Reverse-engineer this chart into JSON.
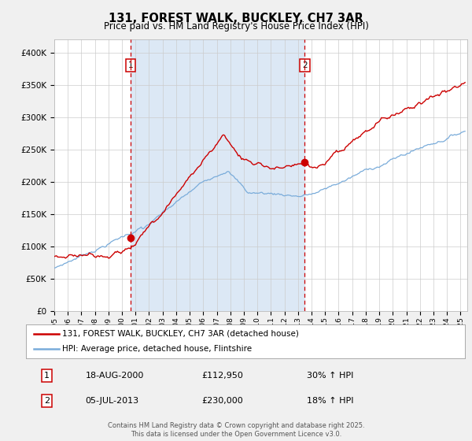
{
  "title": "131, FOREST WALK, BUCKLEY, CH7 3AR",
  "subtitle": "Price paid vs. HM Land Registry's House Price Index (HPI)",
  "title_fontsize": 10.5,
  "subtitle_fontsize": 8.5,
  "background_color": "#f0f0f0",
  "plot_bg_color": "#ffffff",
  "highlight_bg_color": "#dce8f5",
  "red_color": "#cc0000",
  "blue_color": "#7aacda",
  "marker1_date": 2000.63,
  "marker1_value": 112950,
  "marker2_date": 2013.5,
  "marker2_value": 230000,
  "vline1_date": 2000.63,
  "vline2_date": 2013.5,
  "ylim": [
    0,
    420000
  ],
  "xlim_start": 1995.0,
  "xlim_end": 2025.5,
  "legend_red": "131, FOREST WALK, BUCKLEY, CH7 3AR (detached house)",
  "legend_blue": "HPI: Average price, detached house, Flintshire",
  "table_row1": [
    "1",
    "18-AUG-2000",
    "£112,950",
    "30% ↑ HPI"
  ],
  "table_row2": [
    "2",
    "05-JUL-2013",
    "£230,000",
    "18% ↑ HPI"
  ],
  "footer": "Contains HM Land Registry data © Crown copyright and database right 2025.\nThis data is licensed under the Open Government Licence v3.0.",
  "yticks": [
    0,
    50000,
    100000,
    150000,
    200000,
    250000,
    300000,
    350000,
    400000
  ],
  "ytick_labels": [
    "£0",
    "£50K",
    "£100K",
    "£150K",
    "£200K",
    "£250K",
    "£300K",
    "£350K",
    "£400K"
  ]
}
